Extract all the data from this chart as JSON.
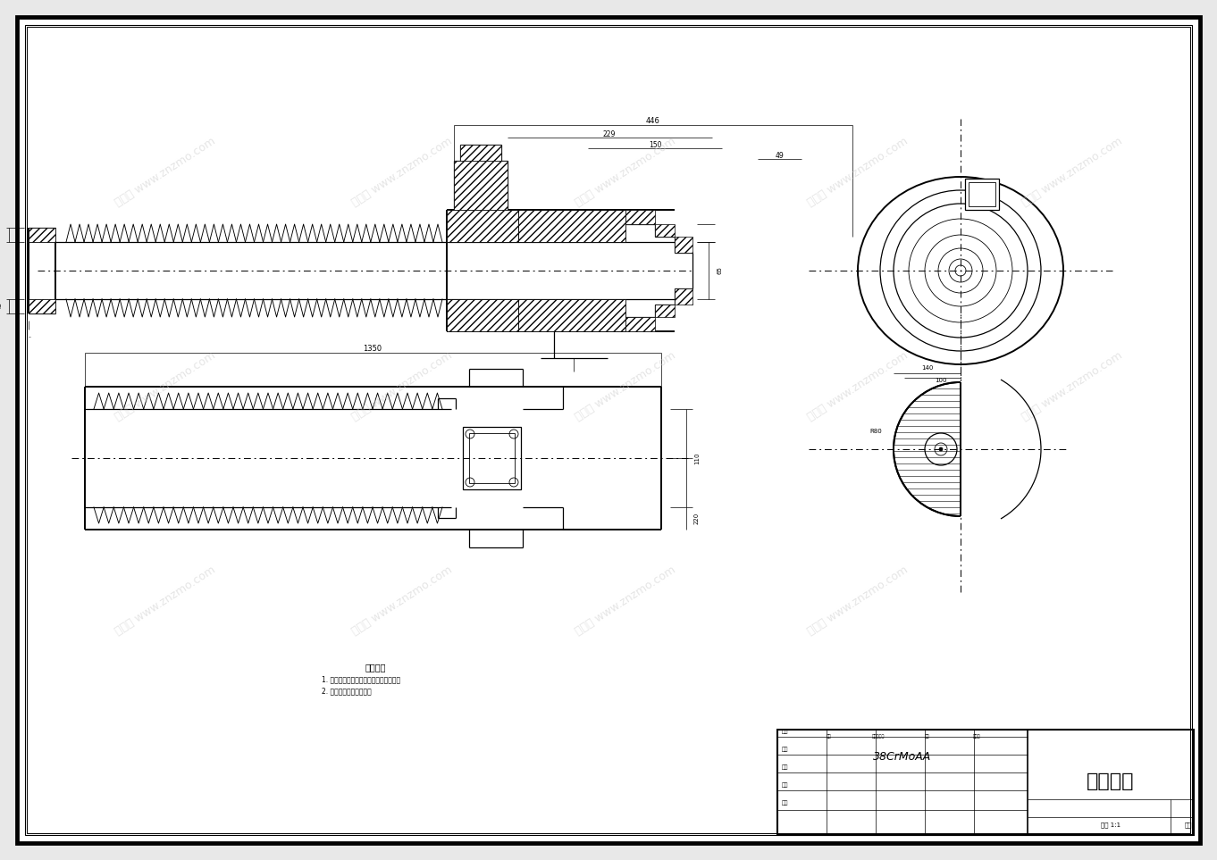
{
  "bg_color": "#e8e8e8",
  "paper_color": "#ffffff",
  "line_color": "#000000",
  "title": "加料机筒",
  "material": "38CrMoAA",
  "notes_title": "技术要求",
  "note1": "1. 零件经氮化处理，气孔、裂纹等缺陷。",
  "note2": "2. 锻造后进行调质处理。",
  "watermark": "知末网 www.znzmo.com"
}
